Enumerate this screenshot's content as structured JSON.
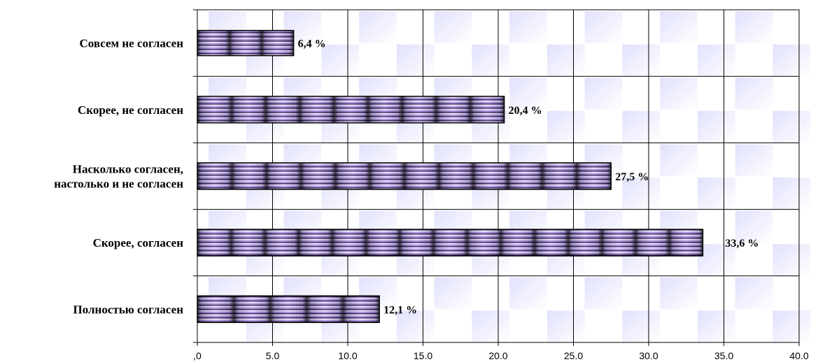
{
  "chart_data": {
    "type": "bar",
    "orientation": "horizontal",
    "categories": [
      "Совсем не согласен",
      "Скорее, не согласен",
      "Насколько согласен, настолько и не согласен",
      "Скорее, согласен",
      "Полностью согласен"
    ],
    "category_lines": [
      [
        "Совсем не согласен"
      ],
      [
        "Скорее, не согласен"
      ],
      [
        "Насколько согласен,",
        "настолько и не согласен"
      ],
      [
        "Скорее, согласен"
      ],
      [
        "Полностью согласен"
      ]
    ],
    "values": [
      6.4,
      20.4,
      27.5,
      33.6,
      12.1
    ],
    "value_labels": [
      "6,4 %",
      "20,4 %",
      "27,5 %",
      "33,6 %",
      "12,1 %"
    ],
    "xlim": [
      0,
      40
    ],
    "xticks": [
      ",0",
      "5.0",
      "10.0",
      "15.0",
      "20.0",
      "25.0",
      "30.0",
      "35.0",
      "40.0"
    ],
    "title": "",
    "xlabel": "",
    "ylabel": "",
    "grid": true,
    "legend": "none",
    "colors": {
      "bar_fill": "#9b7fd6",
      "bar_dark": "#1e1433",
      "bar_light": "#e2d2ff",
      "bar_outline": "#000000",
      "grid": "#000000",
      "background_tile": "#c9c9fb"
    }
  }
}
